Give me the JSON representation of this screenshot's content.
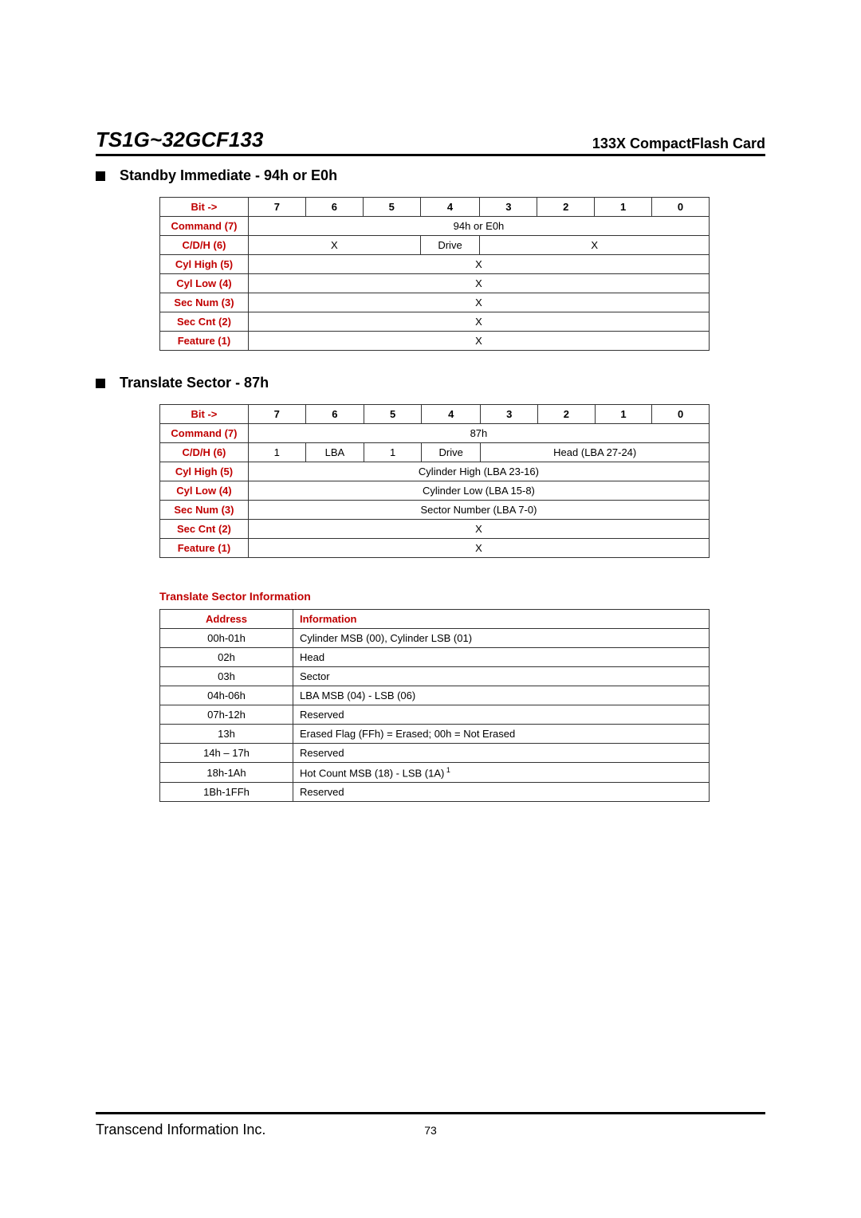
{
  "header": {
    "left": "TS1G~32GCF133",
    "right": "133X CompactFlash Card"
  },
  "section1": {
    "title": "Standby Immediate - 94h or E0h",
    "bit_label": "Bit ->",
    "bits": [
      "7",
      "6",
      "5",
      "4",
      "3",
      "2",
      "1",
      "0"
    ],
    "rows": {
      "command": {
        "label": "Command (7)",
        "value": "94h or E0h"
      },
      "cdh": {
        "label": "C/D/H (6)",
        "c1": "X",
        "c2": "Drive",
        "c3": "X"
      },
      "cylhigh": {
        "label": "Cyl High (5)",
        "value": "X"
      },
      "cyllow": {
        "label": "Cyl Low (4)",
        "value": "X"
      },
      "secnum": {
        "label": "Sec Num (3)",
        "value": "X"
      },
      "seccnt": {
        "label": "Sec Cnt (2)",
        "value": "X"
      },
      "feature": {
        "label": "Feature (1)",
        "value": "X"
      }
    }
  },
  "section2": {
    "title": "Translate Sector - 87h",
    "bit_label": "Bit ->",
    "bits": [
      "7",
      "6",
      "5",
      "4",
      "3",
      "2",
      "1",
      "0"
    ],
    "rows": {
      "command": {
        "label": "Command (7)",
        "value": "87h"
      },
      "cdh": {
        "label": "C/D/H (6)",
        "v7": "1",
        "v6": "LBA",
        "v5": "1",
        "v4": "Drive",
        "rest": "Head (LBA 27-24)"
      },
      "cylhigh": {
        "label": "Cyl High (5)",
        "value": "Cylinder High (LBA 23-16)"
      },
      "cyllow": {
        "label": "Cyl Low (4)",
        "value": "Cylinder Low (LBA 15-8)"
      },
      "secnum": {
        "label": "Sec Num (3)",
        "value": "Sector Number (LBA 7-0)"
      },
      "seccnt": {
        "label": "Sec Cnt (2)",
        "value": "X"
      },
      "feature": {
        "label": "Feature (1)",
        "value": "X"
      }
    }
  },
  "info": {
    "title": "Translate Sector Information",
    "headers": {
      "addr": "Address",
      "info": "Information"
    },
    "rows": [
      {
        "addr": "00h-01h",
        "info": "Cylinder MSB (00), Cylinder LSB (01)"
      },
      {
        "addr": "02h",
        "info": "Head"
      },
      {
        "addr": "03h",
        "info": "Sector"
      },
      {
        "addr": "04h-06h",
        "info": "LBA MSB (04) - LSB (06)"
      },
      {
        "addr": "07h-12h",
        "info": "Reserved"
      },
      {
        "addr": "13h",
        "info": "Erased Flag (FFh) = Erased; 00h = Not Erased"
      },
      {
        "addr": "14h – 17h",
        "info": "Reserved"
      },
      {
        "addr": "18h-1Ah",
        "info": "Hot Count MSB (18) - LSB (1A)",
        "sup": "1"
      },
      {
        "addr": "1Bh-1FFh",
        "info": "Reserved"
      }
    ]
  },
  "footer": {
    "company": "Transcend Information Inc.",
    "page": "73"
  }
}
